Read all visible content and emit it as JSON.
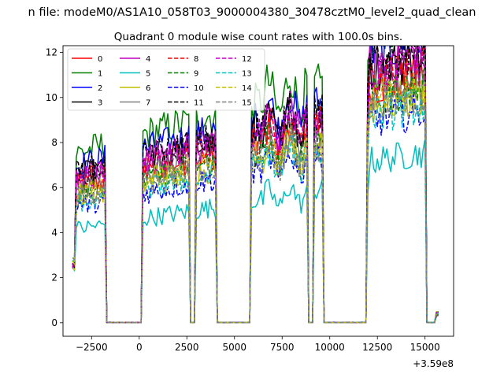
{
  "suptitle": "n file: modeM0/AS1A10_058T03_9000004380_30478cztM0_level2_quad_clean",
  "chart_data": {
    "type": "line",
    "title": "Quadrant 0 module wise count rates with 100.0s bins.",
    "xlabel": "",
    "ylabel": "",
    "x_offset_label": "+3.59e8",
    "xlim": [
      -4000,
      16500
    ],
    "ylim": [
      -0.6,
      12.3
    ],
    "x_ticks": [
      -2500,
      0,
      2500,
      5000,
      7500,
      10000,
      12500,
      15000
    ],
    "x_tick_labels": [
      "−2500",
      "0",
      "2500",
      "5000",
      "7500",
      "10000",
      "12500",
      "15000"
    ],
    "y_ticks": [
      0,
      2,
      4,
      6,
      8,
      10,
      12
    ],
    "y_tick_labels": [
      "0",
      "2",
      "4",
      "6",
      "8",
      "10",
      "12"
    ],
    "grid": false,
    "legend": {
      "placement": "top-left",
      "columns": 4
    },
    "active_intervals": [
      [
        -3300,
        -1800
      ],
      [
        200,
        2600
      ],
      [
        3000,
        4000
      ],
      [
        5900,
        8800
      ],
      [
        9200,
        9600
      ],
      [
        12000,
        15000
      ]
    ],
    "series": [
      {
        "name": "0",
        "color": "#ff0000",
        "dash": "solid",
        "level": 8.3
      },
      {
        "name": "1",
        "color": "#008000",
        "dash": "solid",
        "level": 10.3
      },
      {
        "name": "2",
        "color": "#0000ff",
        "dash": "solid",
        "level": 9.5
      },
      {
        "name": "3",
        "color": "#000000",
        "dash": "solid",
        "level": 8.9
      },
      {
        "name": "4",
        "color": "#bf00bf",
        "dash": "solid",
        "level": 9.0
      },
      {
        "name": "5",
        "color": "#00bfbf",
        "dash": "solid",
        "level": 5.7
      },
      {
        "name": "6",
        "color": "#bfbf00",
        "dash": "solid",
        "level": 7.6
      },
      {
        "name": "7",
        "color": "#808080",
        "dash": "solid",
        "level": 8.2
      },
      {
        "name": "8",
        "color": "#ff0000",
        "dash": "dashed",
        "level": 8.6
      },
      {
        "name": "9",
        "color": "#008000",
        "dash": "dashed",
        "level": 7.9
      },
      {
        "name": "10",
        "color": "#0000ff",
        "dash": "dashed",
        "level": 7.1
      },
      {
        "name": "11",
        "color": "#000000",
        "dash": "dashed",
        "level": 9.1
      },
      {
        "name": "12",
        "color": "#bf00bf",
        "dash": "dashed",
        "level": 8.7
      },
      {
        "name": "13",
        "color": "#00bfbf",
        "dash": "dashed",
        "level": 7.3
      },
      {
        "name": "14",
        "color": "#bfbf00",
        "dash": "dashed",
        "level": 7.8
      },
      {
        "name": "15",
        "color": "#808080",
        "dash": "dashed",
        "level": 7.6
      }
    ]
  }
}
